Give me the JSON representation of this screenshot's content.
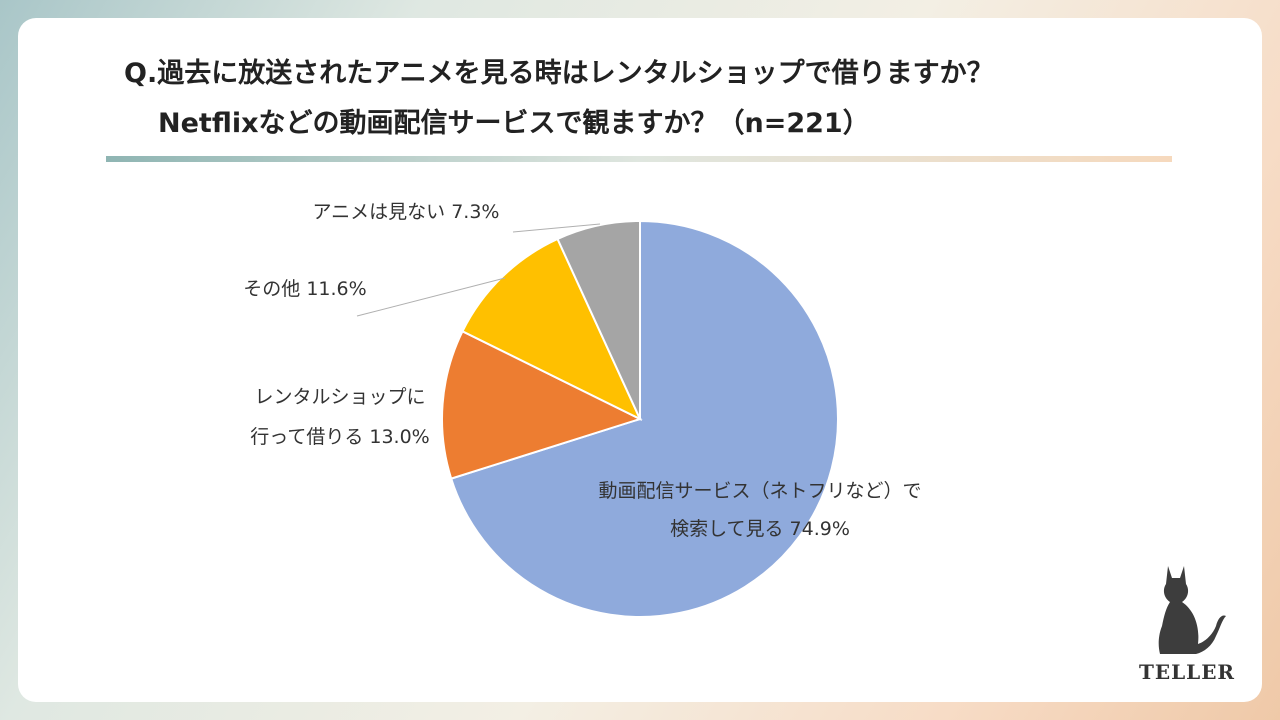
{
  "title": {
    "line1": "Q.過去に放送されたアニメを見る時はレンタルショップで借りますか？",
    "line2": "Netflixなどの動画配信サービスで観ますか？（n=221）"
  },
  "chart_data": {
    "type": "pie",
    "slices": [
      {
        "label_lines": [
          "動画配信サービス（ネトフリなど）で",
          "検索して見る 74.9%"
        ],
        "value": 74.9,
        "color": "#8faadc"
      },
      {
        "label_lines": [
          "レンタルショップに",
          "行って借りる 13.0%"
        ],
        "value": 13.0,
        "color": "#ed7d31"
      },
      {
        "label_lines": [
          "その他 11.6%"
        ],
        "value": 11.6,
        "color": "#ffc000"
      },
      {
        "label_lines": [
          "アニメは見ない 7.3%"
        ],
        "value": 7.3,
        "color": "#a5a5a5"
      }
    ]
  },
  "logo": {
    "text": "TELLER",
    "icon": "cat-icon"
  }
}
